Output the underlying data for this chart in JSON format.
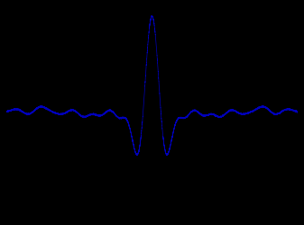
{
  "background_color": "#000000",
  "line_color": "#0000BB",
  "line_width": 0.5,
  "figsize": [
    3.37,
    2.51
  ],
  "dpi": 100,
  "n_points": 16000,
  "x_range": [
    -1.0,
    1.0
  ],
  "noise_level": 0.003,
  "seed": 17
}
